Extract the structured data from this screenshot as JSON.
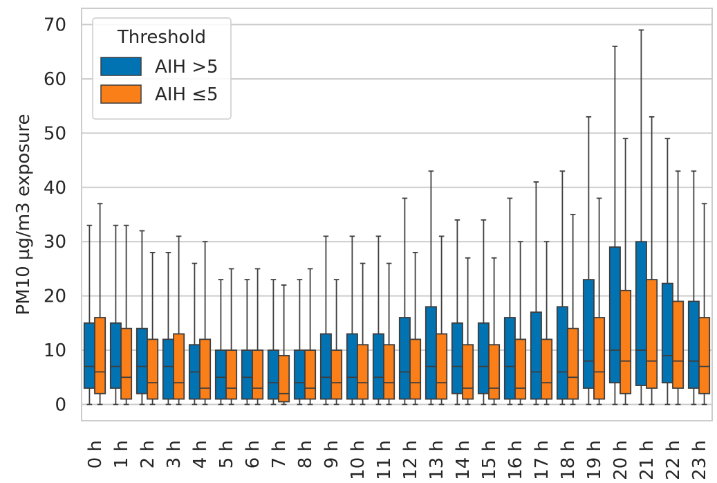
{
  "chart_data": {
    "type": "box",
    "ylabel": "PM10 µg/m3 exposure",
    "xlabel": "",
    "ylim": [
      -3,
      73
    ],
    "yticks": [
      0,
      10,
      20,
      30,
      40,
      50,
      60,
      70
    ],
    "grid": true,
    "categories": [
      "0 h",
      "1 h",
      "2 h",
      "3 h",
      "4 h",
      "5 h",
      "6 h",
      "7 h",
      "8 h",
      "9 h",
      "10 h",
      "11 h",
      "12 h",
      "13 h",
      "14 h",
      "15 h",
      "16 h",
      "17 h",
      "18 h",
      "19 h",
      "20 h",
      "21 h",
      "22 h",
      "23 h"
    ],
    "legend": {
      "title": "Threshold",
      "placement": "top-left"
    },
    "series": [
      {
        "name": "AIH >5",
        "color": "#0173b2",
        "boxes": [
          {
            "whislo": 0,
            "q1": 3,
            "med": 7,
            "q3": 15,
            "whishi": 33
          },
          {
            "whislo": 0,
            "q1": 3,
            "med": 7,
            "q3": 15,
            "whishi": 33
          },
          {
            "whislo": 0,
            "q1": 2,
            "med": 7,
            "q3": 14,
            "whishi": 32
          },
          {
            "whislo": 0,
            "q1": 1,
            "med": 7,
            "q3": 12,
            "whishi": 28
          },
          {
            "whislo": 0,
            "q1": 1,
            "med": 6,
            "q3": 11,
            "whishi": 26
          },
          {
            "whislo": 0,
            "q1": 1,
            "med": 5,
            "q3": 10,
            "whishi": 23
          },
          {
            "whislo": 0,
            "q1": 1,
            "med": 5,
            "q3": 10,
            "whishi": 23
          },
          {
            "whislo": 0,
            "q1": 1,
            "med": 4,
            "q3": 10,
            "whishi": 23
          },
          {
            "whislo": 0,
            "q1": 1,
            "med": 4,
            "q3": 10,
            "whishi": 23
          },
          {
            "whislo": 0,
            "q1": 1,
            "med": 5,
            "q3": 13,
            "whishi": 31
          },
          {
            "whislo": 0,
            "q1": 1,
            "med": 5,
            "q3": 13,
            "whishi": 31
          },
          {
            "whislo": 0,
            "q1": 1,
            "med": 5,
            "q3": 13,
            "whishi": 31
          },
          {
            "whislo": 0,
            "q1": 1,
            "med": 6,
            "q3": 16,
            "whishi": 38
          },
          {
            "whislo": 0,
            "q1": 1,
            "med": 7,
            "q3": 18,
            "whishi": 43
          },
          {
            "whislo": 0,
            "q1": 2,
            "med": 7,
            "q3": 15,
            "whishi": 34
          },
          {
            "whislo": 0,
            "q1": 2,
            "med": 7,
            "q3": 15,
            "whishi": 34
          },
          {
            "whislo": 0,
            "q1": 1,
            "med": 7,
            "q3": 16,
            "whishi": 38
          },
          {
            "whislo": 0,
            "q1": 1,
            "med": 6,
            "q3": 17,
            "whishi": 41
          },
          {
            "whislo": 0,
            "q1": 1,
            "med": 6,
            "q3": 18,
            "whishi": 43
          },
          {
            "whislo": 0,
            "q1": 3,
            "med": 8,
            "q3": 23,
            "whishi": 53
          },
          {
            "whislo": 0,
            "q1": 4,
            "med": 10,
            "q3": 29,
            "whishi": 66
          },
          {
            "whislo": 0,
            "q1": 3.5,
            "med": 10,
            "q3": 30,
            "whishi": 69
          },
          {
            "whislo": 0,
            "q1": 4,
            "med": 9,
            "q3": 22.3,
            "whishi": 49
          },
          {
            "whislo": 0,
            "q1": 3,
            "med": 8,
            "q3": 19,
            "whishi": 43
          }
        ]
      },
      {
        "name": "AIH ≤5",
        "color": "#fa7f19",
        "boxes": [
          {
            "whislo": 0,
            "q1": 2,
            "med": 6,
            "q3": 16,
            "whishi": 37
          },
          {
            "whislo": 0,
            "q1": 1,
            "med": 5,
            "q3": 14,
            "whishi": 33
          },
          {
            "whislo": 0,
            "q1": 1,
            "med": 4,
            "q3": 12,
            "whishi": 28
          },
          {
            "whislo": 0,
            "q1": 1,
            "med": 4,
            "q3": 13,
            "whishi": 31
          },
          {
            "whislo": 0,
            "q1": 1,
            "med": 3,
            "q3": 12,
            "whishi": 30
          },
          {
            "whislo": 0,
            "q1": 1,
            "med": 3,
            "q3": 10,
            "whishi": 25
          },
          {
            "whislo": 0,
            "q1": 1,
            "med": 3,
            "q3": 10,
            "whishi": 25
          },
          {
            "whislo": 0,
            "q1": 0.5,
            "med": 2,
            "q3": 9,
            "whishi": 22
          },
          {
            "whislo": 0,
            "q1": 1,
            "med": 3,
            "q3": 10,
            "whishi": 25
          },
          {
            "whislo": 0,
            "q1": 1,
            "med": 4,
            "q3": 10,
            "whishi": 23
          },
          {
            "whislo": 0,
            "q1": 1,
            "med": 4,
            "q3": 11,
            "whishi": 26
          },
          {
            "whislo": 0,
            "q1": 1,
            "med": 4,
            "q3": 11,
            "whishi": 26
          },
          {
            "whislo": 0,
            "q1": 1,
            "med": 4,
            "q3": 12,
            "whishi": 28
          },
          {
            "whislo": 0,
            "q1": 1,
            "med": 4,
            "q3": 13,
            "whishi": 31
          },
          {
            "whislo": 0,
            "q1": 1,
            "med": 3,
            "q3": 11,
            "whishi": 27
          },
          {
            "whislo": 0,
            "q1": 1,
            "med": 3,
            "q3": 11,
            "whishi": 27
          },
          {
            "whislo": 0,
            "q1": 1,
            "med": 3,
            "q3": 12,
            "whishi": 30
          },
          {
            "whislo": 0,
            "q1": 1,
            "med": 4,
            "q3": 12,
            "whishi": 30
          },
          {
            "whislo": 0,
            "q1": 1,
            "med": 5,
            "q3": 14,
            "whishi": 35
          },
          {
            "whislo": 0,
            "q1": 1,
            "med": 6,
            "q3": 16,
            "whishi": 38
          },
          {
            "whislo": 0,
            "q1": 2,
            "med": 8,
            "q3": 21,
            "whishi": 49
          },
          {
            "whislo": 0,
            "q1": 3,
            "med": 8,
            "q3": 23,
            "whishi": 53
          },
          {
            "whislo": 0,
            "q1": 3,
            "med": 8,
            "q3": 19,
            "whishi": 43
          },
          {
            "whislo": 0,
            "q1": 2,
            "med": 7,
            "q3": 16,
            "whishi": 37
          }
        ]
      }
    ]
  },
  "colors": {
    "grid": "#cccccc",
    "axes_edge": "#cccccc",
    "whisker": "#3d3d3d",
    "text": "#262626",
    "legend_edge": "#cccccc"
  }
}
